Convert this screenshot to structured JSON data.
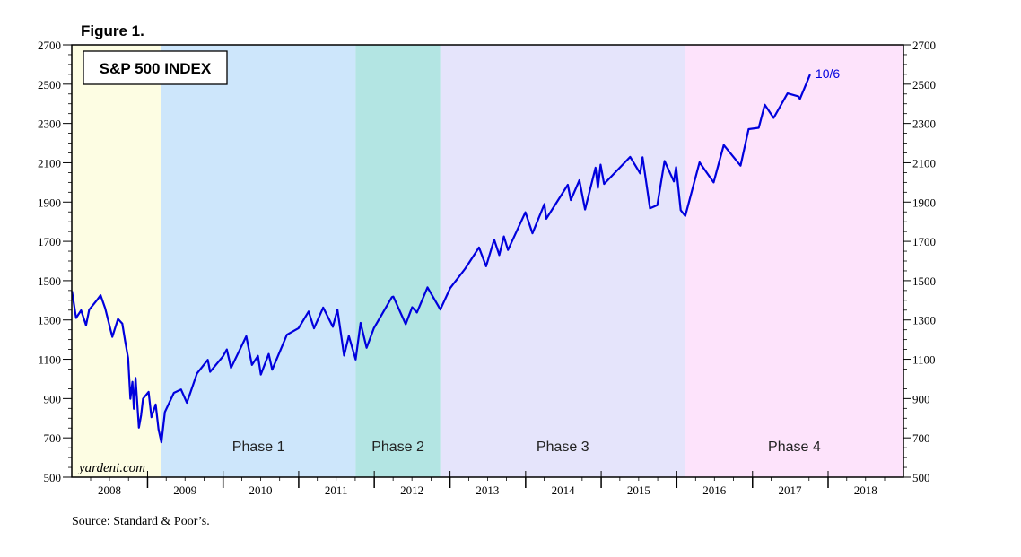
{
  "figure_label": "Figure 1.",
  "source": "Source: Standard & Poor’s.",
  "watermark": "yardeni.com",
  "chart_data": {
    "type": "line",
    "title": "S&P 500 INDEX",
    "xlabel": "",
    "ylabel": "",
    "x_range": [
      "2008-01-01",
      "2018-12-31"
    ],
    "ylim": [
      500,
      2700
    ],
    "yticks": [
      500,
      700,
      900,
      1100,
      1300,
      1500,
      1700,
      1900,
      2100,
      2300,
      2500,
      2700
    ],
    "ytick_labels": [
      "500",
      "700",
      "900",
      "1100",
      "1300",
      "1500",
      "1700",
      "1900",
      "2100",
      "2300",
      "2500",
      "2700"
    ],
    "xtick_labels": [
      "2008",
      "2009",
      "2010",
      "2011",
      "2012",
      "2013",
      "2014",
      "2015",
      "2016",
      "2017",
      "2018"
    ],
    "grid": false,
    "line_color": "#0000dd",
    "end_annotation": "10/6",
    "phases": [
      {
        "label": "",
        "start": "2008-01-01",
        "end": "2009-03-09",
        "color": "#fdfde3"
      },
      {
        "label": "Phase 1",
        "start": "2009-03-09",
        "end": "2011-10-03",
        "color": "#cde6fb"
      },
      {
        "label": "Phase 2",
        "start": "2011-10-03",
        "end": "2012-11-15",
        "color": "#b3e5e3"
      },
      {
        "label": "Phase 3",
        "start": "2012-11-15",
        "end": "2016-02-11",
        "color": "#e5e4fb"
      },
      {
        "label": "Phase 4",
        "start": "2016-02-11",
        "end": "2018-12-31",
        "color": "#fde3fb"
      }
    ],
    "series": [
      {
        "name": "",
        "points": [
          [
            "2008-01-02",
            1447
          ],
          [
            "2008-01-22",
            1310
          ],
          [
            "2008-02-15",
            1349
          ],
          [
            "2008-03-10",
            1273
          ],
          [
            "2008-03-25",
            1352
          ],
          [
            "2008-05-01",
            1400
          ],
          [
            "2008-05-19",
            1426
          ],
          [
            "2008-06-10",
            1360
          ],
          [
            "2008-07-15",
            1214
          ],
          [
            "2008-08-11",
            1305
          ],
          [
            "2008-09-01",
            1282
          ],
          [
            "2008-09-15",
            1192
          ],
          [
            "2008-09-29",
            1106
          ],
          [
            "2008-10-10",
            899
          ],
          [
            "2008-10-20",
            985
          ],
          [
            "2008-10-27",
            848
          ],
          [
            "2008-11-04",
            1005
          ],
          [
            "2008-11-20",
            752
          ],
          [
            "2008-12-01",
            816
          ],
          [
            "2008-12-10",
            899
          ],
          [
            "2009-01-06",
            934
          ],
          [
            "2009-01-20",
            805
          ],
          [
            "2009-02-09",
            870
          ],
          [
            "2009-02-23",
            743
          ],
          [
            "2009-03-09",
            677
          ],
          [
            "2009-03-26",
            832
          ],
          [
            "2009-05-08",
            929
          ],
          [
            "2009-06-12",
            946
          ],
          [
            "2009-07-10",
            879
          ],
          [
            "2009-08-28",
            1028
          ],
          [
            "2009-10-19",
            1097
          ],
          [
            "2009-10-30",
            1036
          ],
          [
            "2009-12-31",
            1115
          ],
          [
            "2010-01-19",
            1150
          ],
          [
            "2010-02-08",
            1056
          ],
          [
            "2010-04-23",
            1217
          ],
          [
            "2010-05-20",
            1071
          ],
          [
            "2010-06-18",
            1117
          ],
          [
            "2010-07-02",
            1022
          ],
          [
            "2010-08-09",
            1127
          ],
          [
            "2010-08-26",
            1047
          ],
          [
            "2010-11-05",
            1225
          ],
          [
            "2010-12-31",
            1258
          ],
          [
            "2011-02-18",
            1343
          ],
          [
            "2011-03-16",
            1257
          ],
          [
            "2011-04-29",
            1363
          ],
          [
            "2011-06-15",
            1265
          ],
          [
            "2011-07-07",
            1353
          ],
          [
            "2011-08-08",
            1119
          ],
          [
            "2011-08-31",
            1219
          ],
          [
            "2011-10-03",
            1099
          ],
          [
            "2011-10-27",
            1285
          ],
          [
            "2011-11-25",
            1158
          ],
          [
            "2011-12-30",
            1258
          ],
          [
            "2012-03-26",
            1416
          ],
          [
            "2012-04-02",
            1419
          ],
          [
            "2012-06-01",
            1278
          ],
          [
            "2012-07-02",
            1365
          ],
          [
            "2012-07-25",
            1338
          ],
          [
            "2012-09-14",
            1466
          ],
          [
            "2012-11-15",
            1353
          ],
          [
            "2013-01-02",
            1462
          ],
          [
            "2013-03-15",
            1561
          ],
          [
            "2013-05-21",
            1669
          ],
          [
            "2013-06-24",
            1573
          ],
          [
            "2013-08-02",
            1709
          ],
          [
            "2013-08-27",
            1630
          ],
          [
            "2013-09-18",
            1725
          ],
          [
            "2013-10-08",
            1656
          ],
          [
            "2013-12-31",
            1848
          ],
          [
            "2014-02-03",
            1741
          ],
          [
            "2014-04-02",
            1890
          ],
          [
            "2014-04-11",
            1815
          ],
          [
            "2014-07-24",
            1988
          ],
          [
            "2014-08-07",
            1910
          ],
          [
            "2014-09-18",
            2011
          ],
          [
            "2014-10-15",
            1862
          ],
          [
            "2014-12-05",
            2075
          ],
          [
            "2014-12-16",
            1972
          ],
          [
            "2014-12-29",
            2090
          ],
          [
            "2015-01-15",
            1992
          ],
          [
            "2015-05-21",
            2130
          ],
          [
            "2015-07-08",
            2046
          ],
          [
            "2015-07-20",
            2128
          ],
          [
            "2015-08-25",
            1868
          ],
          [
            "2015-09-29",
            1884
          ],
          [
            "2015-11-03",
            2109
          ],
          [
            "2015-12-18",
            2005
          ],
          [
            "2015-12-29",
            2078
          ],
          [
            "2016-01-20",
            1859
          ],
          [
            "2016-02-11",
            1829
          ],
          [
            "2016-04-20",
            2102
          ],
          [
            "2016-06-27",
            2000
          ],
          [
            "2016-08-15",
            2190
          ],
          [
            "2016-11-04",
            2085
          ],
          [
            "2016-12-13",
            2271
          ],
          [
            "2017-01-31",
            2278
          ],
          [
            "2017-03-01",
            2395
          ],
          [
            "2017-04-13",
            2328
          ],
          [
            "2017-06-19",
            2453
          ],
          [
            "2017-08-10",
            2438
          ],
          [
            "2017-08-18",
            2425
          ],
          [
            "2017-09-20",
            2508
          ],
          [
            "2017-10-06",
            2549
          ]
        ]
      }
    ]
  }
}
